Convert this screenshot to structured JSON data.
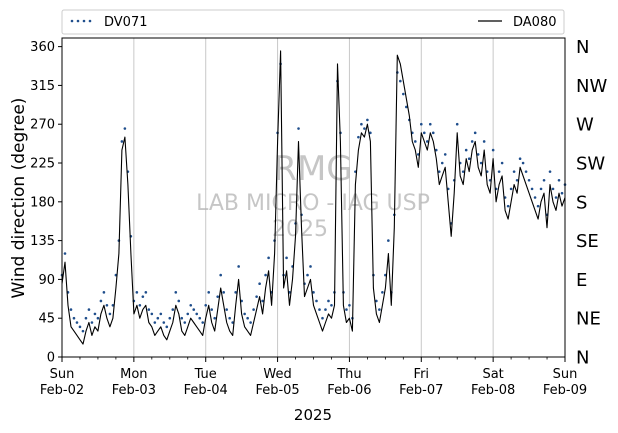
{
  "chart_data": {
    "type": "line",
    "xlabel": "2025",
    "ylabel": "Wind direction (degree)",
    "ylim": [
      0,
      370
    ],
    "yticks": [
      0,
      45,
      90,
      135,
      180,
      225,
      270,
      315,
      360
    ],
    "xlim": [
      0,
      168
    ],
    "xticks": [
      {
        "hour": 0,
        "day": "Sun",
        "date": "Feb-02"
      },
      {
        "hour": 24,
        "day": "Mon",
        "date": "Feb-03"
      },
      {
        "hour": 48,
        "day": "Tue",
        "date": "Feb-04"
      },
      {
        "hour": 72,
        "day": "Wed",
        "date": "Feb-05"
      },
      {
        "hour": 96,
        "day": "Thu",
        "date": "Feb-06"
      },
      {
        "hour": 120,
        "day": "Fri",
        "date": "Feb-07"
      },
      {
        "hour": 144,
        "day": "Sat",
        "date": "Feb-08"
      },
      {
        "hour": 168,
        "day": "Sun",
        "date": "Feb-09"
      }
    ],
    "grid": "vertical at day boundaries",
    "right_axis": {
      "labels": [
        "N",
        "NE",
        "E",
        "SE",
        "S",
        "SW",
        "W",
        "NW",
        "N"
      ],
      "values": [
        0,
        45,
        90,
        135,
        180,
        225,
        270,
        315,
        360
      ]
    },
    "legend": {
      "placement": "top, above plot",
      "entries": [
        {
          "name": "DV071",
          "style": "dotted",
          "color": "#1f4e8c"
        },
        {
          "name": "DA080",
          "style": "solid",
          "color": "#000000"
        }
      ]
    },
    "series": [
      {
        "name": "DA080",
        "style": "line",
        "color": "#000000",
        "x": [
          0,
          1,
          2,
          3,
          4,
          5,
          6,
          7,
          8,
          9,
          10,
          11,
          12,
          13,
          14,
          15,
          16,
          17,
          18,
          19,
          20,
          21,
          22,
          23,
          24,
          25,
          26,
          27,
          28,
          29,
          30,
          31,
          32,
          33,
          34,
          35,
          36,
          37,
          38,
          39,
          40,
          41,
          42,
          43,
          44,
          45,
          46,
          47,
          48,
          49,
          50,
          51,
          52,
          53,
          54,
          55,
          56,
          57,
          58,
          59,
          60,
          61,
          62,
          63,
          64,
          65,
          66,
          67,
          68,
          69,
          70,
          71,
          72,
          73,
          74,
          75,
          76,
          77,
          78,
          79,
          80,
          81,
          82,
          83,
          84,
          85,
          86,
          87,
          88,
          89,
          90,
          91,
          92,
          93,
          94,
          95,
          96,
          97,
          98,
          99,
          100,
          101,
          102,
          103,
          104,
          105,
          106,
          107,
          108,
          109,
          110,
          111,
          112,
          113,
          114,
          115,
          116,
          117,
          118,
          119,
          120,
          121,
          122,
          123,
          124,
          125,
          126,
          127,
          128,
          129,
          130,
          131,
          132,
          133,
          134,
          135,
          136,
          137,
          138,
          139,
          140,
          141,
          142,
          143,
          144,
          145,
          146,
          147,
          148,
          149,
          150,
          151,
          152,
          153,
          154,
          155,
          156,
          157,
          158,
          159,
          160,
          161,
          162,
          163,
          164,
          165,
          166,
          167,
          168
        ],
        "y": [
          85,
          110,
          60,
          35,
          30,
          25,
          20,
          15,
          30,
          40,
          25,
          35,
          30,
          50,
          60,
          45,
          35,
          45,
          80,
          120,
          240,
          255,
          200,
          120,
          50,
          60,
          45,
          55,
          60,
          40,
          35,
          25,
          30,
          35,
          25,
          20,
          30,
          40,
          60,
          50,
          30,
          25,
          35,
          45,
          40,
          35,
          30,
          25,
          45,
          60,
          40,
          30,
          55,
          80,
          60,
          40,
          30,
          25,
          60,
          90,
          50,
          35,
          30,
          25,
          40,
          55,
          70,
          50,
          80,
          100,
          60,
          120,
          250,
          355,
          80,
          100,
          60,
          90,
          140,
          250,
          150,
          70,
          80,
          90,
          60,
          50,
          40,
          30,
          40,
          50,
          45,
          60,
          340,
          250,
          60,
          40,
          45,
          30,
          200,
          240,
          260,
          255,
          270,
          250,
          80,
          50,
          40,
          60,
          80,
          120,
          60,
          150,
          350,
          340,
          320,
          300,
          280,
          250,
          240,
          220,
          260,
          250,
          240,
          260,
          250,
          230,
          200,
          210,
          220,
          180,
          140,
          190,
          260,
          210,
          200,
          230,
          215,
          240,
          250,
          220,
          210,
          240,
          200,
          190,
          230,
          180,
          200,
          210,
          170,
          160,
          180,
          200,
          190,
          220,
          210,
          200,
          190,
          180,
          170,
          160,
          180,
          190,
          150,
          200,
          180,
          170,
          190,
          175,
          185
        ]
      },
      {
        "name": "DV071",
        "style": "dotted",
        "color": "#1f4e8c",
        "x": [
          0,
          1,
          2,
          3,
          4,
          5,
          6,
          7,
          8,
          9,
          10,
          11,
          12,
          13,
          14,
          15,
          16,
          17,
          18,
          19,
          20,
          21,
          22,
          23,
          24,
          25,
          26,
          27,
          28,
          29,
          30,
          31,
          32,
          33,
          34,
          35,
          36,
          37,
          38,
          39,
          40,
          41,
          42,
          43,
          44,
          45,
          46,
          47,
          48,
          49,
          50,
          51,
          52,
          53,
          54,
          55,
          56,
          57,
          58,
          59,
          60,
          61,
          62,
          63,
          64,
          65,
          66,
          67,
          68,
          69,
          70,
          71,
          72,
          73,
          74,
          75,
          76,
          77,
          78,
          79,
          80,
          81,
          82,
          83,
          84,
          85,
          86,
          87,
          88,
          89,
          90,
          91,
          92,
          93,
          94,
          95,
          96,
          97,
          98,
          99,
          100,
          101,
          102,
          103,
          104,
          105,
          106,
          107,
          108,
          109,
          110,
          111,
          112,
          113,
          114,
          115,
          116,
          117,
          118,
          119,
          120,
          121,
          122,
          123,
          124,
          125,
          126,
          127,
          128,
          129,
          130,
          131,
          132,
          133,
          134,
          135,
          136,
          137,
          138,
          139,
          140,
          141,
          142,
          143,
          144,
          145,
          146,
          147,
          148,
          149,
          150,
          151,
          152,
          153,
          154,
          155,
          156,
          157,
          158,
          159,
          160,
          161,
          162,
          163,
          164,
          165,
          166,
          167,
          168
        ],
        "y": [
          95,
          120,
          75,
          55,
          45,
          40,
          35,
          30,
          45,
          55,
          40,
          50,
          45,
          65,
          75,
          60,
          50,
          60,
          95,
          135,
          250,
          265,
          215,
          140,
          65,
          75,
          60,
          70,
          75,
          55,
          50,
          40,
          45,
          50,
          40,
          35,
          45,
          55,
          75,
          65,
          45,
          40,
          50,
          60,
          55,
          50,
          45,
          40,
          60,
          75,
          55,
          45,
          70,
          95,
          75,
          55,
          45,
          40,
          75,
          105,
          65,
          50,
          45,
          40,
          55,
          70,
          85,
          65,
          95,
          115,
          75,
          135,
          260,
          340,
          95,
          115,
          75,
          105,
          155,
          265,
          165,
          85,
          95,
          105,
          75,
          65,
          55,
          45,
          55,
          65,
          60,
          75,
          320,
          260,
          75,
          55,
          60,
          45,
          215,
          255,
          270,
          265,
          275,
          260,
          95,
          65,
          55,
          75,
          95,
          135,
          75,
          165,
          330,
          320,
          305,
          290,
          275,
          260,
          250,
          235,
          270,
          260,
          250,
          270,
          260,
          240,
          215,
          225,
          235,
          195,
          155,
          205,
          270,
          225,
          215,
          240,
          230,
          250,
          260,
          235,
          225,
          250,
          215,
          205,
          240,
          195,
          215,
          225,
          185,
          175,
          195,
          215,
          205,
          230,
          225,
          215,
          205,
          195,
          185,
          175,
          195,
          205,
          165,
          215,
          195,
          185,
          205,
          190,
          200
        ]
      }
    ],
    "watermark": [
      "RMG",
      "LAB MICRO - IAG USP",
      "2025"
    ]
  }
}
